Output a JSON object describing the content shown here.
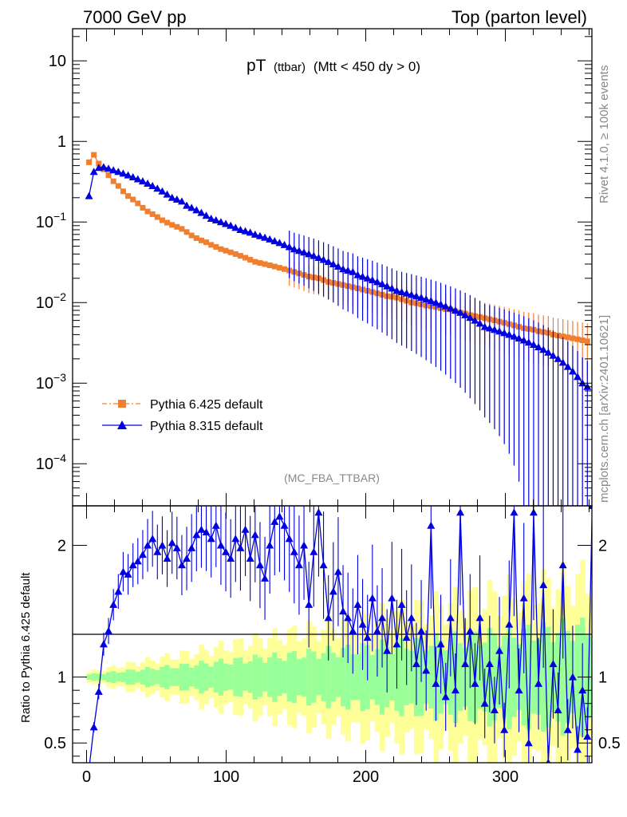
{
  "header": {
    "left_title": "7000 GeV pp",
    "right_title": "Top (parton level)"
  },
  "side_labels": {
    "rivet": "Rivet 4.1.0, ≥ 100k events",
    "mcplots": "mcplots.cern.ch [arXiv:2401.10621]"
  },
  "chart_data": {
    "type": "line",
    "title_main": "pT",
    "title_small": "(ttbar)",
    "title_rest": "(Mtt < 450 dy > 0)",
    "analysis_label": "(MC_FBA_TTBAR)",
    "xlim": [
      -10,
      362
    ],
    "x_ticks": [
      "0",
      "100",
      "200",
      "300"
    ],
    "main_panel": {
      "yscale": "log",
      "ylim": [
        3e-05,
        25
      ],
      "y_ticks": [
        {
          "base": "10",
          "exp": "−4",
          "value": 0.0001
        },
        {
          "base": "10",
          "exp": "−3",
          "value": 0.001
        },
        {
          "base": "10",
          "exp": "−2",
          "value": 0.01
        },
        {
          "base": "10",
          "exp": "−1",
          "value": 0.1
        },
        {
          "base": "1",
          "exp": "",
          "value": 1
        },
        {
          "base": "10",
          "exp": "",
          "value": 10
        }
      ]
    },
    "ratio_panel": {
      "ylabel": "Ratio to Pythia 6.425 default",
      "ylim": [
        0.35,
        2.3
      ],
      "y_ticks": [
        "0.5",
        "1",
        "2"
      ],
      "y_tick_values": [
        0.5,
        1,
        2
      ]
    },
    "legend": [
      {
        "name": "Pythia 6.425 default",
        "color": "#f08030",
        "marker": "square",
        "dash": "dash-dot"
      },
      {
        "name": "Pythia 8.315 default",
        "color": "#0000e0",
        "marker": "triangle",
        "dash": "solid"
      }
    ],
    "bin_width": 3.5,
    "x_first_center": 1.75,
    "series": [
      {
        "name": "Pythia 6.425 default",
        "values": [
          0.55,
          0.68,
          0.53,
          0.45,
          0.38,
          0.32,
          0.28,
          0.24,
          0.21,
          0.19,
          0.17,
          0.15,
          0.135,
          0.125,
          0.115,
          0.105,
          0.098,
          0.092,
          0.087,
          0.082,
          0.075,
          0.068,
          0.063,
          0.059,
          0.056,
          0.052,
          0.049,
          0.046,
          0.044,
          0.042,
          0.04,
          0.038,
          0.036,
          0.034,
          0.032,
          0.031,
          0.03,
          0.029,
          0.028,
          0.027,
          0.026,
          0.025,
          0.024,
          0.023,
          0.022,
          0.021,
          0.0205,
          0.02,
          0.019,
          0.018,
          0.0175,
          0.017,
          0.0165,
          0.016,
          0.0155,
          0.015,
          0.0145,
          0.014,
          0.0135,
          0.013,
          0.0125,
          0.012,
          0.0118,
          0.0115,
          0.011,
          0.0105,
          0.01,
          0.0098,
          0.0095,
          0.0092,
          0.009,
          0.0088,
          0.0085,
          0.0083,
          0.0082,
          0.0078,
          0.0075,
          0.0073,
          0.007,
          0.0068,
          0.0066,
          0.0064,
          0.0062,
          0.006,
          0.0058,
          0.0056,
          0.0054,
          0.0052,
          0.005,
          0.0048,
          0.0047,
          0.0046,
          0.0044,
          0.0043,
          0.0042,
          0.004,
          0.0039,
          0.0038,
          0.0037,
          0.0036,
          0.0035,
          0.0034,
          0.0033,
          0.0032,
          0.0031
        ],
        "rel_err": 0.15
      },
      {
        "name": "Pythia 8.315 default",
        "values": [
          0.21,
          0.42,
          0.47,
          0.48,
          0.46,
          0.44,
          0.42,
          0.4,
          0.38,
          0.36,
          0.34,
          0.32,
          0.3,
          0.28,
          0.26,
          0.24,
          0.22,
          0.2,
          0.19,
          0.18,
          0.16,
          0.15,
          0.14,
          0.13,
          0.12,
          0.11,
          0.105,
          0.1,
          0.095,
          0.09,
          0.085,
          0.08,
          0.077,
          0.074,
          0.07,
          0.067,
          0.064,
          0.061,
          0.058,
          0.055,
          0.052,
          0.049,
          0.046,
          0.044,
          0.042,
          0.04,
          0.038,
          0.036,
          0.034,
          0.032,
          0.03,
          0.028,
          0.026,
          0.025,
          0.024,
          0.022,
          0.021,
          0.02,
          0.019,
          0.018,
          0.017,
          0.016,
          0.015,
          0.014,
          0.0135,
          0.013,
          0.0125,
          0.012,
          0.0115,
          0.011,
          0.0105,
          0.01,
          0.0095,
          0.009,
          0.0085,
          0.008,
          0.0075,
          0.007,
          0.0065,
          0.006,
          0.0055,
          0.005,
          0.0048,
          0.0046,
          0.0044,
          0.0042,
          0.004,
          0.0038,
          0.0036,
          0.0034,
          0.0032,
          0.003,
          0.0028,
          0.0026,
          0.0024,
          0.0022,
          0.002,
          0.0018,
          0.0016,
          0.0014,
          0.0012,
          0.001,
          0.0009,
          0.0008,
          0.0007
        ],
        "rel_err": 0.25
      }
    ],
    "ratio_series": {
      "name": "Pythia 8.315 default",
      "values": [
        0.3,
        0.62,
        0.89,
        1.25,
        1.35,
        1.55,
        1.65,
        1.8,
        1.78,
        1.85,
        1.88,
        1.93,
        2.0,
        2.05,
        1.95,
        2.0,
        1.9,
        2.02,
        1.98,
        1.85,
        1.9,
        1.98,
        2.08,
        2.12,
        2.1,
        2.05,
        2.15,
        2.0,
        1.95,
        1.9,
        2.05,
        1.98,
        2.12,
        1.9,
        2.08,
        1.85,
        1.75,
        2.0,
        2.18,
        2.22,
        2.15,
        2.05,
        1.95,
        1.85,
        2.0,
        1.55,
        1.95,
        2.25,
        1.85,
        1.45,
        1.65,
        1.8,
        1.5,
        1.45,
        1.35,
        1.55,
        1.4,
        1.3,
        1.6,
        1.35,
        1.45,
        1.2,
        1.6,
        1.25,
        1.55,
        1.3,
        1.45,
        1.1,
        1.35,
        1.05,
        2.15,
        0.95,
        1.25,
        0.85,
        1.45,
        0.9,
        2.25,
        1.1,
        1.35,
        0.95,
        1.45,
        0.8,
        1.1,
        0.75,
        1.2,
        0.6,
        1.4,
        2.25,
        0.9,
        1.6,
        0.5,
        2.25,
        0.95,
        1.7,
        0.35,
        1.1,
        0.75,
        1.85,
        0.6,
        1.0,
        0.45,
        0.9,
        0.55,
        2.3,
        0.35
      ],
      "rel_err": 0.2
    },
    "band_green_halfwidth": {
      "start": 0.02,
      "end": 0.38
    },
    "band_yellow_halfwidth": {
      "start": 0.04,
      "end": 0.75
    }
  }
}
